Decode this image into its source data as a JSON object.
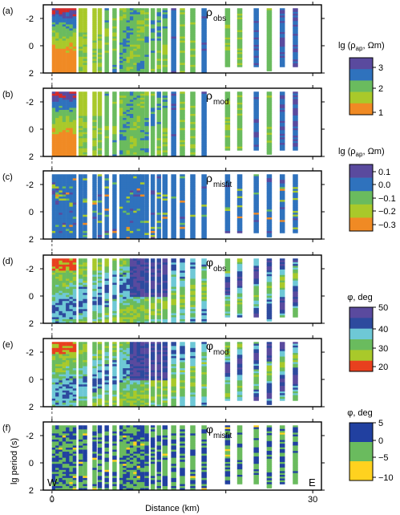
{
  "figure": {
    "xlabel": "Distance (km)",
    "ylabel": "lg period (s)",
    "west_label": "W",
    "east_label": "E",
    "x_ticks": [
      0,
      10,
      20,
      30
    ],
    "x_tick_labels": [
      "0",
      "30"
    ],
    "y_ticks": [
      -2,
      0,
      2
    ],
    "y_tick_labels": [
      "-2",
      "0",
      "2"
    ]
  },
  "colorbars": {
    "rho": {
      "title_main": "lg (ρ",
      "title_sub": "ap",
      "title_end": ", Ωm)",
      "labels": [
        "3",
        "2",
        "1"
      ]
    },
    "misfit_rho": {
      "title_main": "lg (ρ",
      "title_sub": "ap",
      "title_end": ", Ωm)",
      "labels": [
        "0.1",
        "0.0",
        "−0.1",
        "−0.2",
        "−0.3"
      ]
    },
    "phase": {
      "title": "φ, deg",
      "labels": [
        "50",
        "40",
        "30",
        "20"
      ]
    },
    "misfit_phase": {
      "title": "φ, deg",
      "labels": [
        "5",
        "0",
        "−5",
        "−10"
      ]
    }
  },
  "panels": [
    {
      "letter": "(a)",
      "sym": "ρ",
      "sub": "obs"
    },
    {
      "letter": "(b)",
      "sym": "ρ",
      "sub": "mod"
    },
    {
      "letter": "(c)",
      "sym": "ρ",
      "sub": "misfit"
    },
    {
      "letter": "(d)",
      "sym": "φ",
      "sub": "obs"
    },
    {
      "letter": "(e)",
      "sym": "φ",
      "sub": "mod"
    },
    {
      "letter": "(f)",
      "sym": "φ",
      "sub": "misfit"
    }
  ],
  "chart_data": {
    "type": "heatmap",
    "xlabel": "Distance (km)",
    "ylabel": "lg period (s)",
    "xlim": [
      -1,
      31
    ],
    "ylim": [
      -3,
      2
    ],
    "y_axis_inverted": true,
    "station_x_km": [
      0.2,
      0.6,
      1.0,
      1.4,
      1.8,
      2.2,
      2.6,
      3.3,
      3.8,
      4.9,
      5.5,
      6.3,
      7.2,
      8.0,
      8.4,
      8.8,
      9.2,
      9.6,
      10.0,
      10.4,
      10.9,
      11.6,
      12.3,
      13.0,
      14.0,
      15.0,
      16.2,
      17.5,
      20.2,
      21.6,
      23.5,
      25.0,
      26.5,
      28.0
    ],
    "panel_colorscales": {
      "rho_obs": [
        1,
        3.5
      ],
      "rho_mod": [
        1,
        3.5
      ],
      "rho_misfit": [
        -0.35,
        0.15
      ],
      "phi_obs": [
        15,
        50
      ],
      "phi_mod": [
        15,
        50
      ],
      "phi_misfit": [
        -10,
        5
      ]
    },
    "colorbar_steps": {
      "rho": [
        "#f08a24",
        "#a9c92a",
        "#6abb5e",
        "#2f72bd",
        "#5a4a9e"
      ],
      "misfit_rho": [
        "#f08a24",
        "#a9c92a",
        "#6abb5e",
        "#2f72bd",
        "#5a4a9e"
      ],
      "phase": [
        "#e8401e",
        "#a9c92a",
        "#6abb5e",
        "#6ec8d6",
        "#2d4a9e",
        "#5a4a9e"
      ],
      "misfit_phase": [
        "#ffd21f",
        "#6abb5e",
        "#2140a0"
      ]
    }
  }
}
